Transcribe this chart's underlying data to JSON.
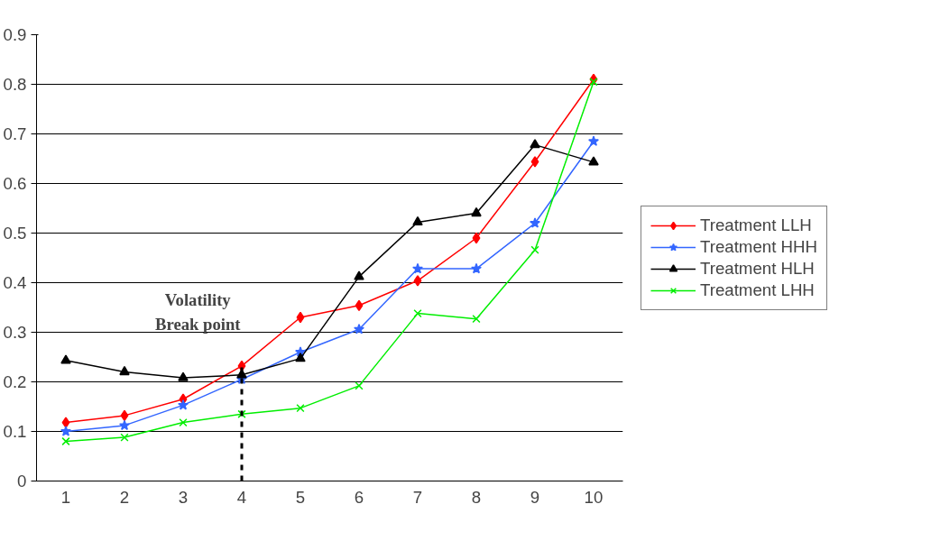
{
  "chart_data": {
    "type": "line",
    "categories": [
      "1",
      "2",
      "3",
      "4",
      "5",
      "6",
      "7",
      "8",
      "9",
      "10"
    ],
    "ylim": [
      0,
      0.9
    ],
    "yticks": [
      0,
      0.1,
      0.2,
      0.3,
      0.4,
      0.5,
      0.6,
      0.7,
      0.8,
      0.9
    ],
    "grid": "y",
    "legend": "right",
    "line_style": "solid",
    "series": [
      {
        "name": "Treatment LLH",
        "color": "#ff0000",
        "marker": "diamond",
        "values": [
          0.118,
          0.132,
          0.165,
          0.232,
          0.33,
          0.354,
          0.404,
          0.49,
          0.644,
          0.81
        ]
      },
      {
        "name": "Treatment HHH",
        "color": "#3366ff",
        "marker": "star",
        "values": [
          0.1,
          0.112,
          0.153,
          0.205,
          0.26,
          0.306,
          0.428,
          0.428,
          0.52,
          0.685
        ]
      },
      {
        "name": "Treatment HLH",
        "color": "#000000",
        "marker": "triangle",
        "values": [
          0.243,
          0.22,
          0.208,
          0.214,
          0.247,
          0.412,
          0.522,
          0.54,
          0.678,
          0.643
        ]
      },
      {
        "name": "Treatment LHH",
        "color": "#00ee00",
        "marker": "cross",
        "values": [
          0.08,
          0.088,
          0.118,
          0.135,
          0.147,
          0.192,
          0.338,
          0.327,
          0.466,
          0.805
        ]
      }
    ],
    "ref_lines": [
      {
        "axis": "x",
        "value": "4",
        "label": "Volatility\nBreak point",
        "color": "#000000",
        "line_style": "dashed"
      }
    ]
  }
}
